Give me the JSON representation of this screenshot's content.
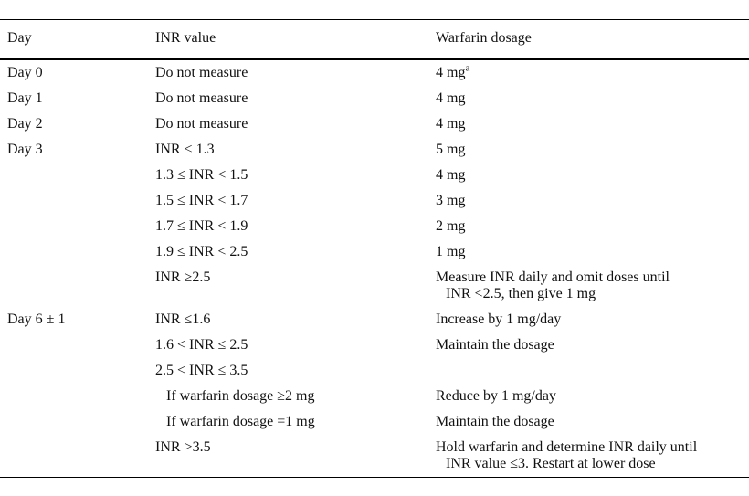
{
  "table": {
    "columns": [
      "Day",
      "INR value",
      "Warfarin dosage"
    ],
    "rows": [
      {
        "day": "Day 0",
        "inr": "Do not measure",
        "dosage": "4 mg",
        "dosage_sup": "a"
      },
      {
        "day": "Day 1",
        "inr": "Do not measure",
        "dosage": "4 mg"
      },
      {
        "day": "Day 2",
        "inr": "Do not measure",
        "dosage": "4 mg"
      },
      {
        "day": "Day 3",
        "inr": "INR < 1.3",
        "dosage": "5 mg"
      },
      {
        "day": "",
        "inr": "1.3 ≤ INR < 1.5",
        "dosage": "4 mg"
      },
      {
        "day": "",
        "inr": "1.5 ≤ INR < 1.7",
        "dosage": "3 mg"
      },
      {
        "day": "",
        "inr": "1.7 ≤ INR < 1.9",
        "dosage": "2 mg"
      },
      {
        "day": "",
        "inr": "1.9 ≤ INR < 2.5",
        "dosage": "1 mg"
      },
      {
        "day": "",
        "inr": "INR ≥2.5",
        "dosage": "Measure INR daily and omit doses until",
        "dosage_line2": "INR <2.5, then give 1 mg"
      },
      {
        "day": "Day 6 ± 1",
        "inr": "INR ≤1.6",
        "dosage": "Increase by 1 mg/day"
      },
      {
        "day": "",
        "inr": "1.6 < INR ≤ 2.5",
        "dosage": "Maintain the dosage"
      },
      {
        "day": "",
        "inr": "2.5 < INR ≤ 3.5",
        "dosage": ""
      },
      {
        "day": "",
        "inr": "If warfarin dosage ≥2 mg",
        "inr_indent": true,
        "dosage": "Reduce by 1 mg/day"
      },
      {
        "day": "",
        "inr": "If warfarin dosage =1 mg",
        "inr_indent": true,
        "dosage": "Maintain the dosage"
      },
      {
        "day": "",
        "inr": "INR >3.5",
        "dosage": "Hold warfarin and determine INR daily until",
        "dosage_line2": "INR value ≤3. Restart at lower dose"
      }
    ]
  }
}
